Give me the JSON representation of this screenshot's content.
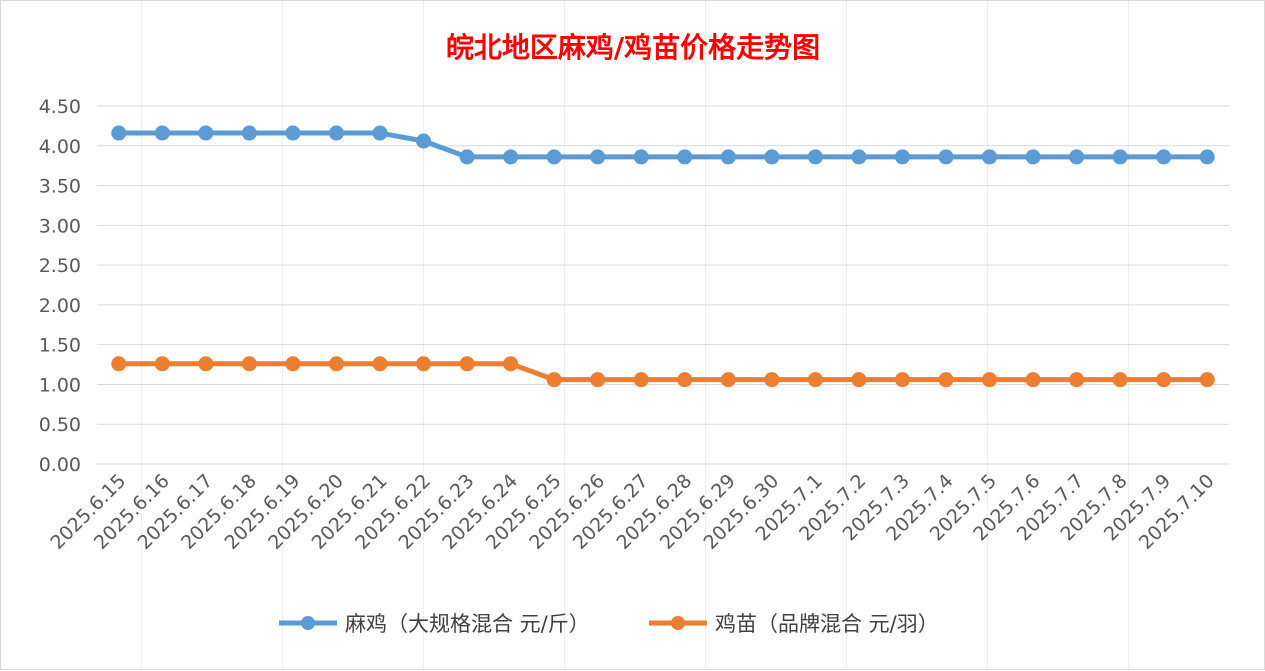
{
  "chart_data": {
    "type": "line",
    "title": "皖北地区麻鸡/鸡苗价格走势图",
    "title_color": "#ff0000",
    "xlabel": "",
    "ylabel": "",
    "categories": [
      "2025.6.15",
      "2025.6.16",
      "2025.6.17",
      "2025.6.18",
      "2025.6.19",
      "2025.6.20",
      "2025.6.21",
      "2025.6.22",
      "2025.6.23",
      "2025.6.24",
      "2025.6.25",
      "2025.6.26",
      "2025.6.27",
      "2025.6.28",
      "2025.6.29",
      "2025.6.30",
      "2025.7.1",
      "2025.7.2",
      "2025.7.3",
      "2025.7.4",
      "2025.7.5",
      "2025.7.6",
      "2025.7.7",
      "2025.7.8",
      "2025.7.9",
      "2025.7.10"
    ],
    "ylim": [
      0,
      4.5
    ],
    "yticks": [
      "0.00",
      "0.50",
      "1.00",
      "1.50",
      "2.00",
      "2.50",
      "3.00",
      "3.50",
      "4.00",
      "4.50"
    ],
    "grid": true,
    "legend_position": "bottom",
    "series": [
      {
        "name": "麻鸡（大规格混合 元/斤）",
        "color": "#5b9bd5",
        "values": [
          4.16,
          4.16,
          4.16,
          4.16,
          4.16,
          4.16,
          4.16,
          4.06,
          3.86,
          3.86,
          3.86,
          3.86,
          3.86,
          3.86,
          3.86,
          3.86,
          3.86,
          3.86,
          3.86,
          3.86,
          3.86,
          3.86,
          3.86,
          3.86,
          3.86,
          3.86
        ]
      },
      {
        "name": "鸡苗（品牌混合 元/羽）",
        "color": "#ed7d31",
        "values": [
          1.26,
          1.26,
          1.26,
          1.26,
          1.26,
          1.26,
          1.26,
          1.26,
          1.26,
          1.26,
          1.06,
          1.06,
          1.06,
          1.06,
          1.06,
          1.06,
          1.06,
          1.06,
          1.06,
          1.06,
          1.06,
          1.06,
          1.06,
          1.06,
          1.06,
          1.06
        ]
      }
    ]
  }
}
